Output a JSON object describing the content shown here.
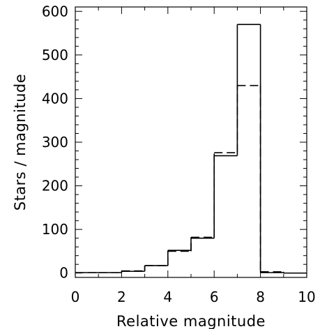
{
  "chart_data": {
    "type": "bar",
    "xlabel": "Relative magnitude",
    "ylabel": "Stars / magnitude",
    "xlim": [
      0,
      10
    ],
    "ylim": [
      -10,
      610
    ],
    "grid": false,
    "bin_edges": [
      0,
      1,
      2,
      3,
      4,
      5,
      6,
      7,
      8,
      9,
      10
    ],
    "x_ticks": [
      "0",
      "2",
      "4",
      "6",
      "8",
      "10"
    ],
    "y_ticks": [
      "0",
      "100",
      "200",
      "300",
      "400",
      "500",
      "600"
    ],
    "series": [
      {
        "style": "solid",
        "values": [
          1,
          1,
          4,
          17,
          52,
          80,
          269,
          570,
          1,
          0
        ]
      },
      {
        "style": "dashed",
        "values": [
          1,
          1,
          5,
          17,
          50,
          82,
          276,
          430,
          3,
          0
        ]
      }
    ]
  }
}
